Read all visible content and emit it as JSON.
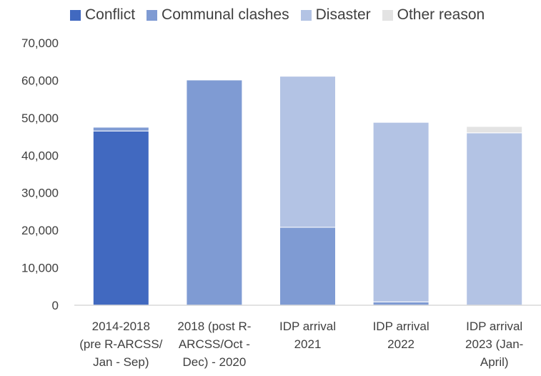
{
  "chart_data": {
    "type": "bar",
    "stacked": true,
    "title": "",
    "xlabel": "",
    "ylabel": "",
    "categories": [
      [
        "2014-2018",
        "(pre R-ARCSS/",
        "Jan - Sep)"
      ],
      [
        "2018 (post R-",
        "ARCSS/Oct -",
        "Dec) - 2020"
      ],
      [
        "IDP  arrival",
        "2021"
      ],
      [
        "IDP  arrival",
        "2022"
      ],
      [
        "IDP  arrival",
        "2023 (Jan-",
        "April)"
      ]
    ],
    "series": [
      {
        "name": "Conflict",
        "color": "#4169c0",
        "values": [
          46500,
          0,
          0,
          0,
          0
        ]
      },
      {
        "name": "Communal clashes",
        "color": "#7f9bd3",
        "values": [
          1000,
          60100,
          20800,
          900,
          0
        ]
      },
      {
        "name": "Disaster",
        "color": "#b3c3e4",
        "values": [
          0,
          0,
          40300,
          47900,
          46000
        ]
      },
      {
        "name": "Other reason",
        "color": "#e3e3e3",
        "values": [
          0,
          0,
          0,
          0,
          1700
        ]
      }
    ],
    "ylim": [
      0,
      70000
    ],
    "yticks": [
      "0",
      "10,000",
      "20,000",
      "30,000",
      "40,000",
      "50,000",
      "60,000",
      "70,000"
    ],
    "ytick_values": [
      0,
      10000,
      20000,
      30000,
      40000,
      50000,
      60000,
      70000
    ],
    "grid": false,
    "legend": "top"
  }
}
